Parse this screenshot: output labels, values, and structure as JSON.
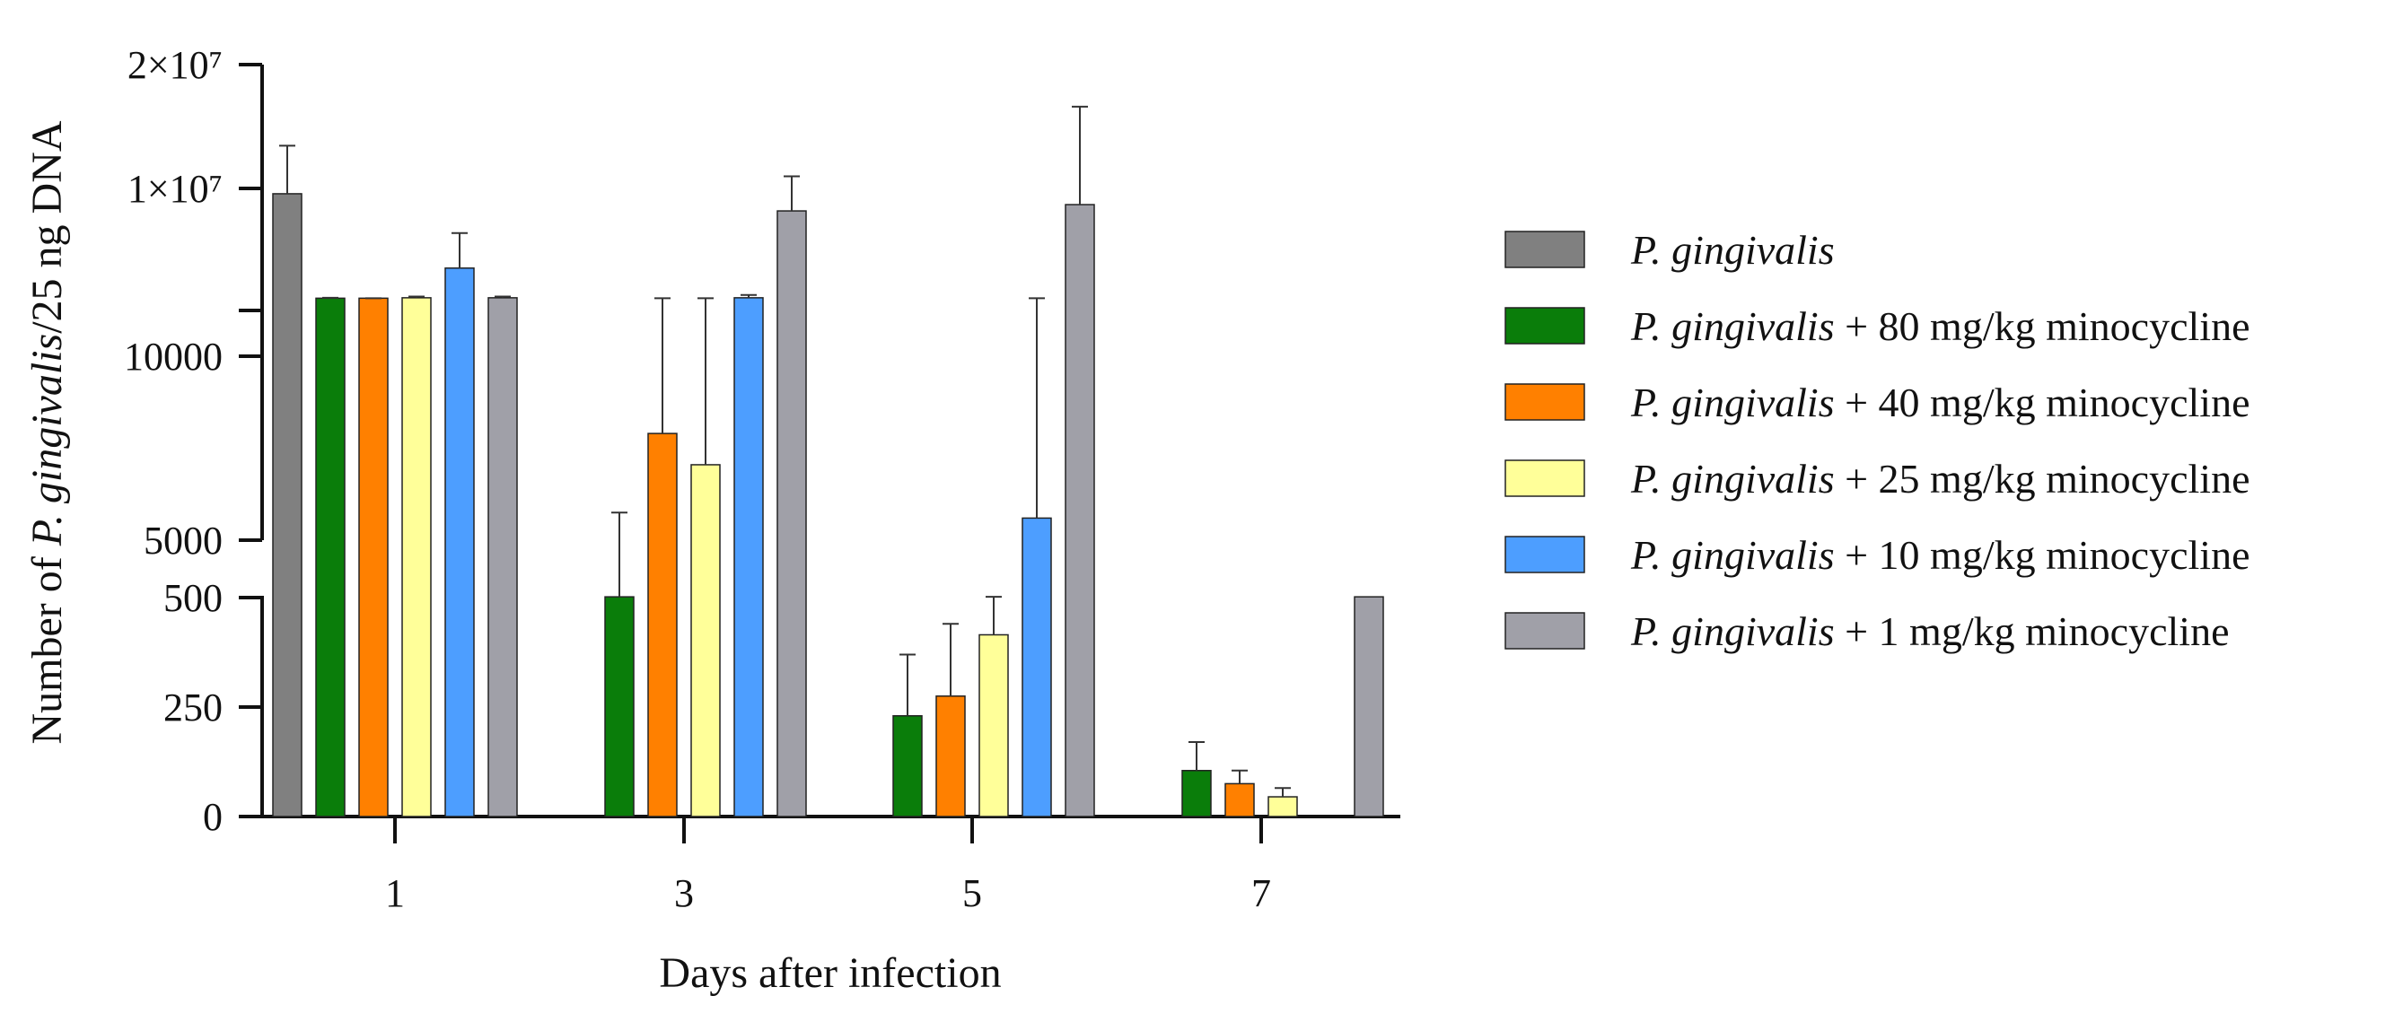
{
  "chart_data": {
    "type": "bar",
    "title": "",
    "xlabel": "Days after infection",
    "ylabel": {
      "prefix": "Number of ",
      "italic": "P. gingivalis",
      "suffix": "/25 ng DNA"
    },
    "y_axis": {
      "scale": "segmented",
      "ticks": [
        {
          "value": 0,
          "label": "0"
        },
        {
          "value": 250,
          "label": "250"
        },
        {
          "value": 500,
          "label": "500"
        },
        {
          "value": 5000,
          "label": "5000"
        },
        {
          "value": 10000,
          "label": "10000"
        },
        {
          "value": 10000000,
          "label": "1×10⁷"
        },
        {
          "value": 20000000,
          "label": "2×10⁷"
        }
      ],
      "segments": [
        {
          "range": [
            0,
            500
          ],
          "scale": "linear"
        },
        {
          "range": [
            500,
            5000
          ],
          "scale": "break"
        },
        {
          "range": [
            5000,
            10000
          ],
          "scale": "linear"
        },
        {
          "range": [
            10000,
            20000000
          ],
          "scale": "log"
        }
      ]
    },
    "categories": [
      "1",
      "3",
      "5",
      "7"
    ],
    "series": [
      {
        "name": "P. gingivalis",
        "color": "#808080",
        "label_species": "P. gingivalis",
        "label_rest": "",
        "values": [
          7400000,
          null,
          null,
          null
        ],
        "errors": [
          12700000,
          null,
          null,
          null
        ]
      },
      {
        "name": "P. gingivalis + 80 mg/kg minocycline",
        "color": "#0a7d0a",
        "label_species": "P. gingivalis",
        "label_rest": "+ 80 mg/kg minocycline",
        "values": [
          20000,
          560,
          230,
          105
        ],
        "errors": [
          20500,
          5750,
          370,
          170
        ]
      },
      {
        "name": "P. gingivalis + 40 mg/kg minocycline",
        "color": "#ff8000",
        "label_species": "P. gingivalis",
        "label_rest": "+ 40 mg/kg minocycline",
        "values": [
          20000,
          7900,
          275,
          75
        ],
        "errors": [
          20000,
          20000,
          440,
          105
        ]
      },
      {
        "name": "P. gingivalis + 25 mg/kg minocycline",
        "color": "#ffff99",
        "label_species": "P. gingivalis",
        "label_rest": "+ 25 mg/kg minocycline",
        "values": [
          20500,
          7050,
          415,
          45
        ],
        "errors": [
          22000,
          20000,
          560,
          65
        ]
      },
      {
        "name": "P. gingivalis + 10 mg/kg minocycline",
        "color": "#4d9eff",
        "label_species": "P. gingivalis",
        "label_rest": "+ 10 mg/kg minocycline",
        "values": [
          110000,
          20500,
          5600,
          null
        ],
        "errors": [
          800000,
          24000,
          20000,
          null
        ]
      },
      {
        "name": "P. gingivalis + 1 mg/kg minocycline",
        "color": "#a0a0a8",
        "label_species": "P. gingivalis",
        "label_rest": "+ 1 mg/kg minocycline",
        "values": [
          20500,
          2800000,
          4000000,
          560
        ],
        "errors": [
          22000,
          10700000,
          15800000,
          null
        ]
      }
    ],
    "legend_position": "right"
  }
}
